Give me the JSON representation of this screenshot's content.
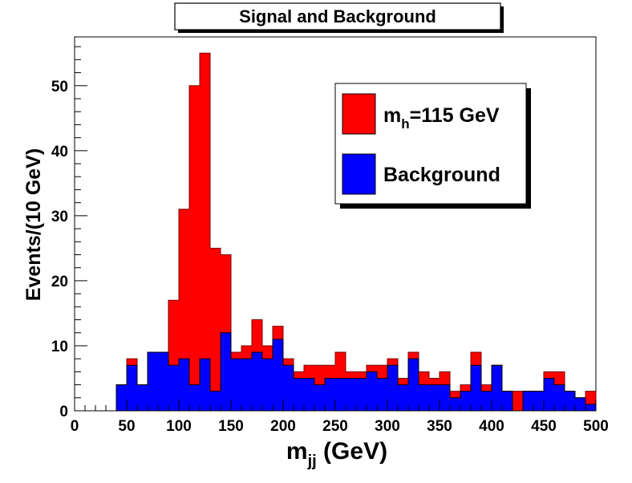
{
  "chart_data": {
    "type": "bar",
    "title": "Signal and Background",
    "xlabel": "m_jj (GeV)",
    "xlabel_main": "m",
    "xlabel_sub": "jj",
    "xlabel_rest": " (GeV)",
    "ylabel": "Events/(10 GeV)",
    "xlim": [
      0,
      500
    ],
    "ylim": [
      0,
      57.5
    ],
    "bin_width": 10,
    "x_ticks": [
      0,
      50,
      100,
      150,
      200,
      250,
      300,
      350,
      400,
      450,
      500
    ],
    "x_tick_labels": [
      "0",
      "50",
      "100",
      "150",
      "200",
      "250",
      "300",
      "350",
      "400",
      "450",
      "500"
    ],
    "y_ticks": [
      0,
      10,
      20,
      30,
      40,
      50
    ],
    "y_tick_labels": [
      "0",
      "10",
      "20",
      "30",
      "40",
      "50"
    ],
    "bin_low_edges": [
      0,
      10,
      20,
      30,
      40,
      50,
      60,
      70,
      80,
      90,
      100,
      110,
      120,
      130,
      140,
      150,
      160,
      170,
      180,
      190,
      200,
      210,
      220,
      230,
      240,
      250,
      260,
      270,
      280,
      290,
      300,
      310,
      320,
      330,
      340,
      350,
      360,
      370,
      380,
      390,
      400,
      410,
      420,
      430,
      440,
      450,
      460,
      470,
      480,
      490
    ],
    "series": [
      {
        "name": "Background",
        "color": "#0000ff",
        "values": [
          0,
          0,
          0,
          0,
          4,
          7,
          4,
          9,
          9,
          7,
          8,
          4,
          8,
          3,
          12,
          8,
          8,
          9,
          8,
          11,
          7,
          5,
          5,
          4,
          5,
          5,
          5,
          5,
          6,
          5,
          7,
          4,
          8,
          4,
          4,
          4,
          2,
          3,
          7,
          3,
          7,
          3,
          0,
          3,
          3,
          5,
          4,
          3,
          2,
          1
        ]
      },
      {
        "name": "Signal + Background (m_h=115 GeV)",
        "color": "#ff0000",
        "values": [
          0,
          0,
          0,
          0,
          4,
          8,
          4,
          9,
          9,
          17,
          31,
          50,
          55,
          25,
          24,
          9,
          10,
          14,
          10,
          13,
          8,
          6,
          7,
          7,
          7,
          9,
          6,
          6,
          7,
          7,
          8,
          5,
          9,
          6,
          5,
          6,
          3,
          4,
          9,
          4,
          7,
          3,
          3,
          3,
          3,
          6,
          6,
          3,
          2,
          3
        ]
      }
    ],
    "legend_position": "top-right",
    "legend": [
      {
        "label_main": "m",
        "label_sub": "h",
        "label_rest": "=115 GeV",
        "color": "#ff0000"
      },
      {
        "label_main": "Background",
        "label_sub": "",
        "label_rest": "",
        "color": "#0000ff"
      }
    ]
  }
}
